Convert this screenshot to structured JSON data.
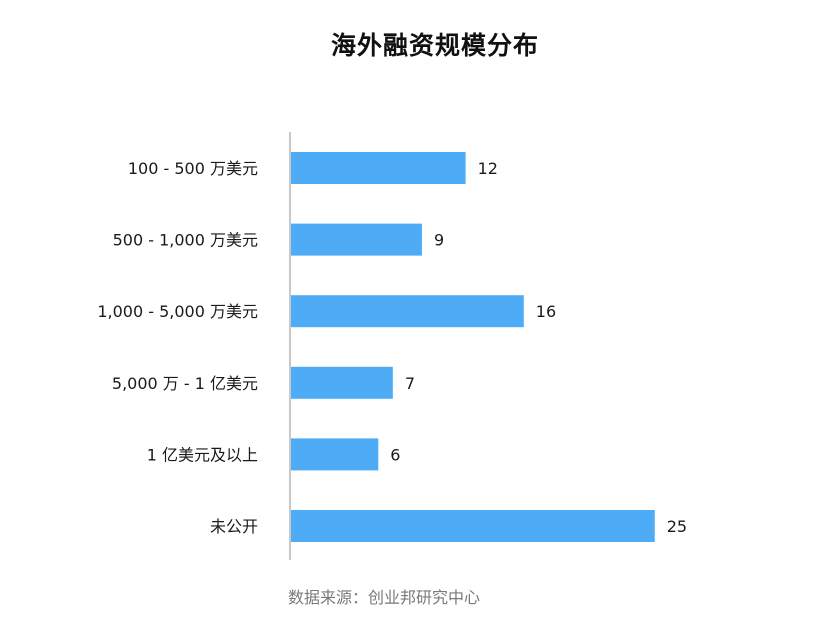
{
  "chart_data": {
    "type": "bar",
    "orientation": "horizontal",
    "title": "海外融资规模分布",
    "categories": [
      "100 - 500 万美元",
      "500 - 1,000 万美元",
      "1,000 - 5,000 万美元",
      "5,000 万 - 1 亿美元",
      "1 亿美元及以上",
      "未公开"
    ],
    "values": [
      12,
      9,
      16,
      7,
      6,
      25
    ],
    "xlim": [
      0,
      25
    ],
    "grid": false,
    "data_labels": true,
    "bar_color": "#4DACF5",
    "axis_color": "#c8c8c8"
  },
  "source": "数据来源：创业邦研究中心"
}
